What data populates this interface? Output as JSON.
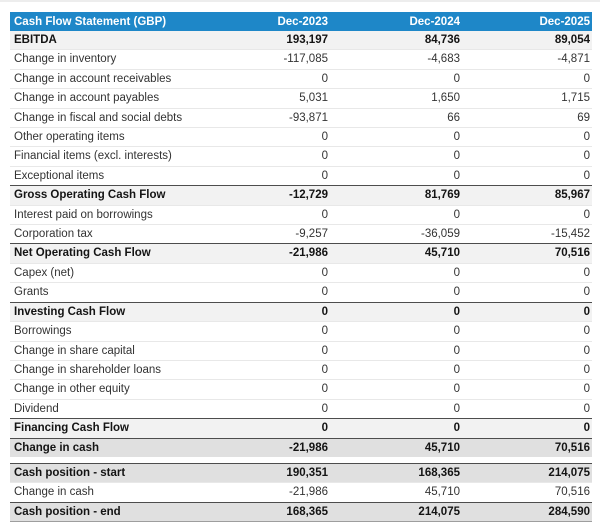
{
  "colors": {
    "header_bg": "#1e87c8",
    "header_text": "#ffffff",
    "section_row_bg": "#f2f2f2",
    "strong_row_bg": "#e0e0e0",
    "dark_border": "#4d4d4d",
    "light_border": "#e8e8e8",
    "table_end_border": "#9e9e9e"
  },
  "table": {
    "title": "Cash Flow Statement (GBP)",
    "columns": [
      "Dec-2023",
      "Dec-2024",
      "Dec-2025"
    ],
    "rows": [
      {
        "label": "EBITDA",
        "values": [
          "193,197",
          "84,736",
          "89,054"
        ],
        "style": "section",
        "no_top_border": true
      },
      {
        "label": "Change in inventory",
        "values": [
          "-117,085",
          "-4,683",
          "-4,871"
        ],
        "style": "normal"
      },
      {
        "label": "Change in account receivables",
        "values": [
          "0",
          "0",
          "0"
        ],
        "style": "normal"
      },
      {
        "label": "Change in account payables",
        "values": [
          "5,031",
          "1,650",
          "1,715"
        ],
        "style": "normal"
      },
      {
        "label": "Change in fiscal and social debts",
        "values": [
          "-93,871",
          "66",
          "69"
        ],
        "style": "normal"
      },
      {
        "label": "Other operating items",
        "values": [
          "0",
          "0",
          "0"
        ],
        "style": "normal"
      },
      {
        "label": "Financial items (excl. interests)",
        "values": [
          "0",
          "0",
          "0"
        ],
        "style": "normal"
      },
      {
        "label": "Exceptional items",
        "values": [
          "0",
          "0",
          "0"
        ],
        "style": "normal"
      },
      {
        "label": "Gross Operating Cash Flow",
        "values": [
          "-12,729",
          "81,769",
          "85,967"
        ],
        "style": "section"
      },
      {
        "label": "Interest paid on borrowings",
        "values": [
          "0",
          "0",
          "0"
        ],
        "style": "normal"
      },
      {
        "label": "Corporation tax",
        "values": [
          "-9,257",
          "-36,059",
          "-15,452"
        ],
        "style": "normal"
      },
      {
        "label": "Net Operating Cash Flow",
        "values": [
          "-21,986",
          "45,710",
          "70,516"
        ],
        "style": "section"
      },
      {
        "label": "Capex (net)",
        "values": [
          "0",
          "0",
          "0"
        ],
        "style": "normal"
      },
      {
        "label": "Grants",
        "values": [
          "0",
          "0",
          "0"
        ],
        "style": "normal"
      },
      {
        "label": "Investing Cash Flow",
        "values": [
          "0",
          "0",
          "0"
        ],
        "style": "section"
      },
      {
        "label": "Borrowings",
        "values": [
          "0",
          "0",
          "0"
        ],
        "style": "normal"
      },
      {
        "label": "Change in share capital",
        "values": [
          "0",
          "0",
          "0"
        ],
        "style": "normal"
      },
      {
        "label": "Change in shareholder loans",
        "values": [
          "0",
          "0",
          "0"
        ],
        "style": "normal"
      },
      {
        "label": "Change in other equity",
        "values": [
          "0",
          "0",
          "0"
        ],
        "style": "normal"
      },
      {
        "label": "Dividend",
        "values": [
          "0",
          "0",
          "0"
        ],
        "style": "normal"
      },
      {
        "label": "Financing Cash Flow",
        "values": [
          "0",
          "0",
          "0"
        ],
        "style": "section"
      },
      {
        "label": "Change in cash",
        "values": [
          "-21,986",
          "45,710",
          "70,516"
        ],
        "style": "strong"
      },
      {
        "style": "gap"
      },
      {
        "label": "Cash position - start",
        "values": [
          "190,351",
          "168,365",
          "214,075"
        ],
        "style": "strong"
      },
      {
        "label": "Change in cash",
        "values": [
          "-21,986",
          "45,710",
          "70,516"
        ],
        "style": "normal"
      },
      {
        "label": "Cash position - end",
        "values": [
          "168,365",
          "214,075",
          "284,590"
        ],
        "style": "strong",
        "bottom_border": true
      }
    ]
  }
}
